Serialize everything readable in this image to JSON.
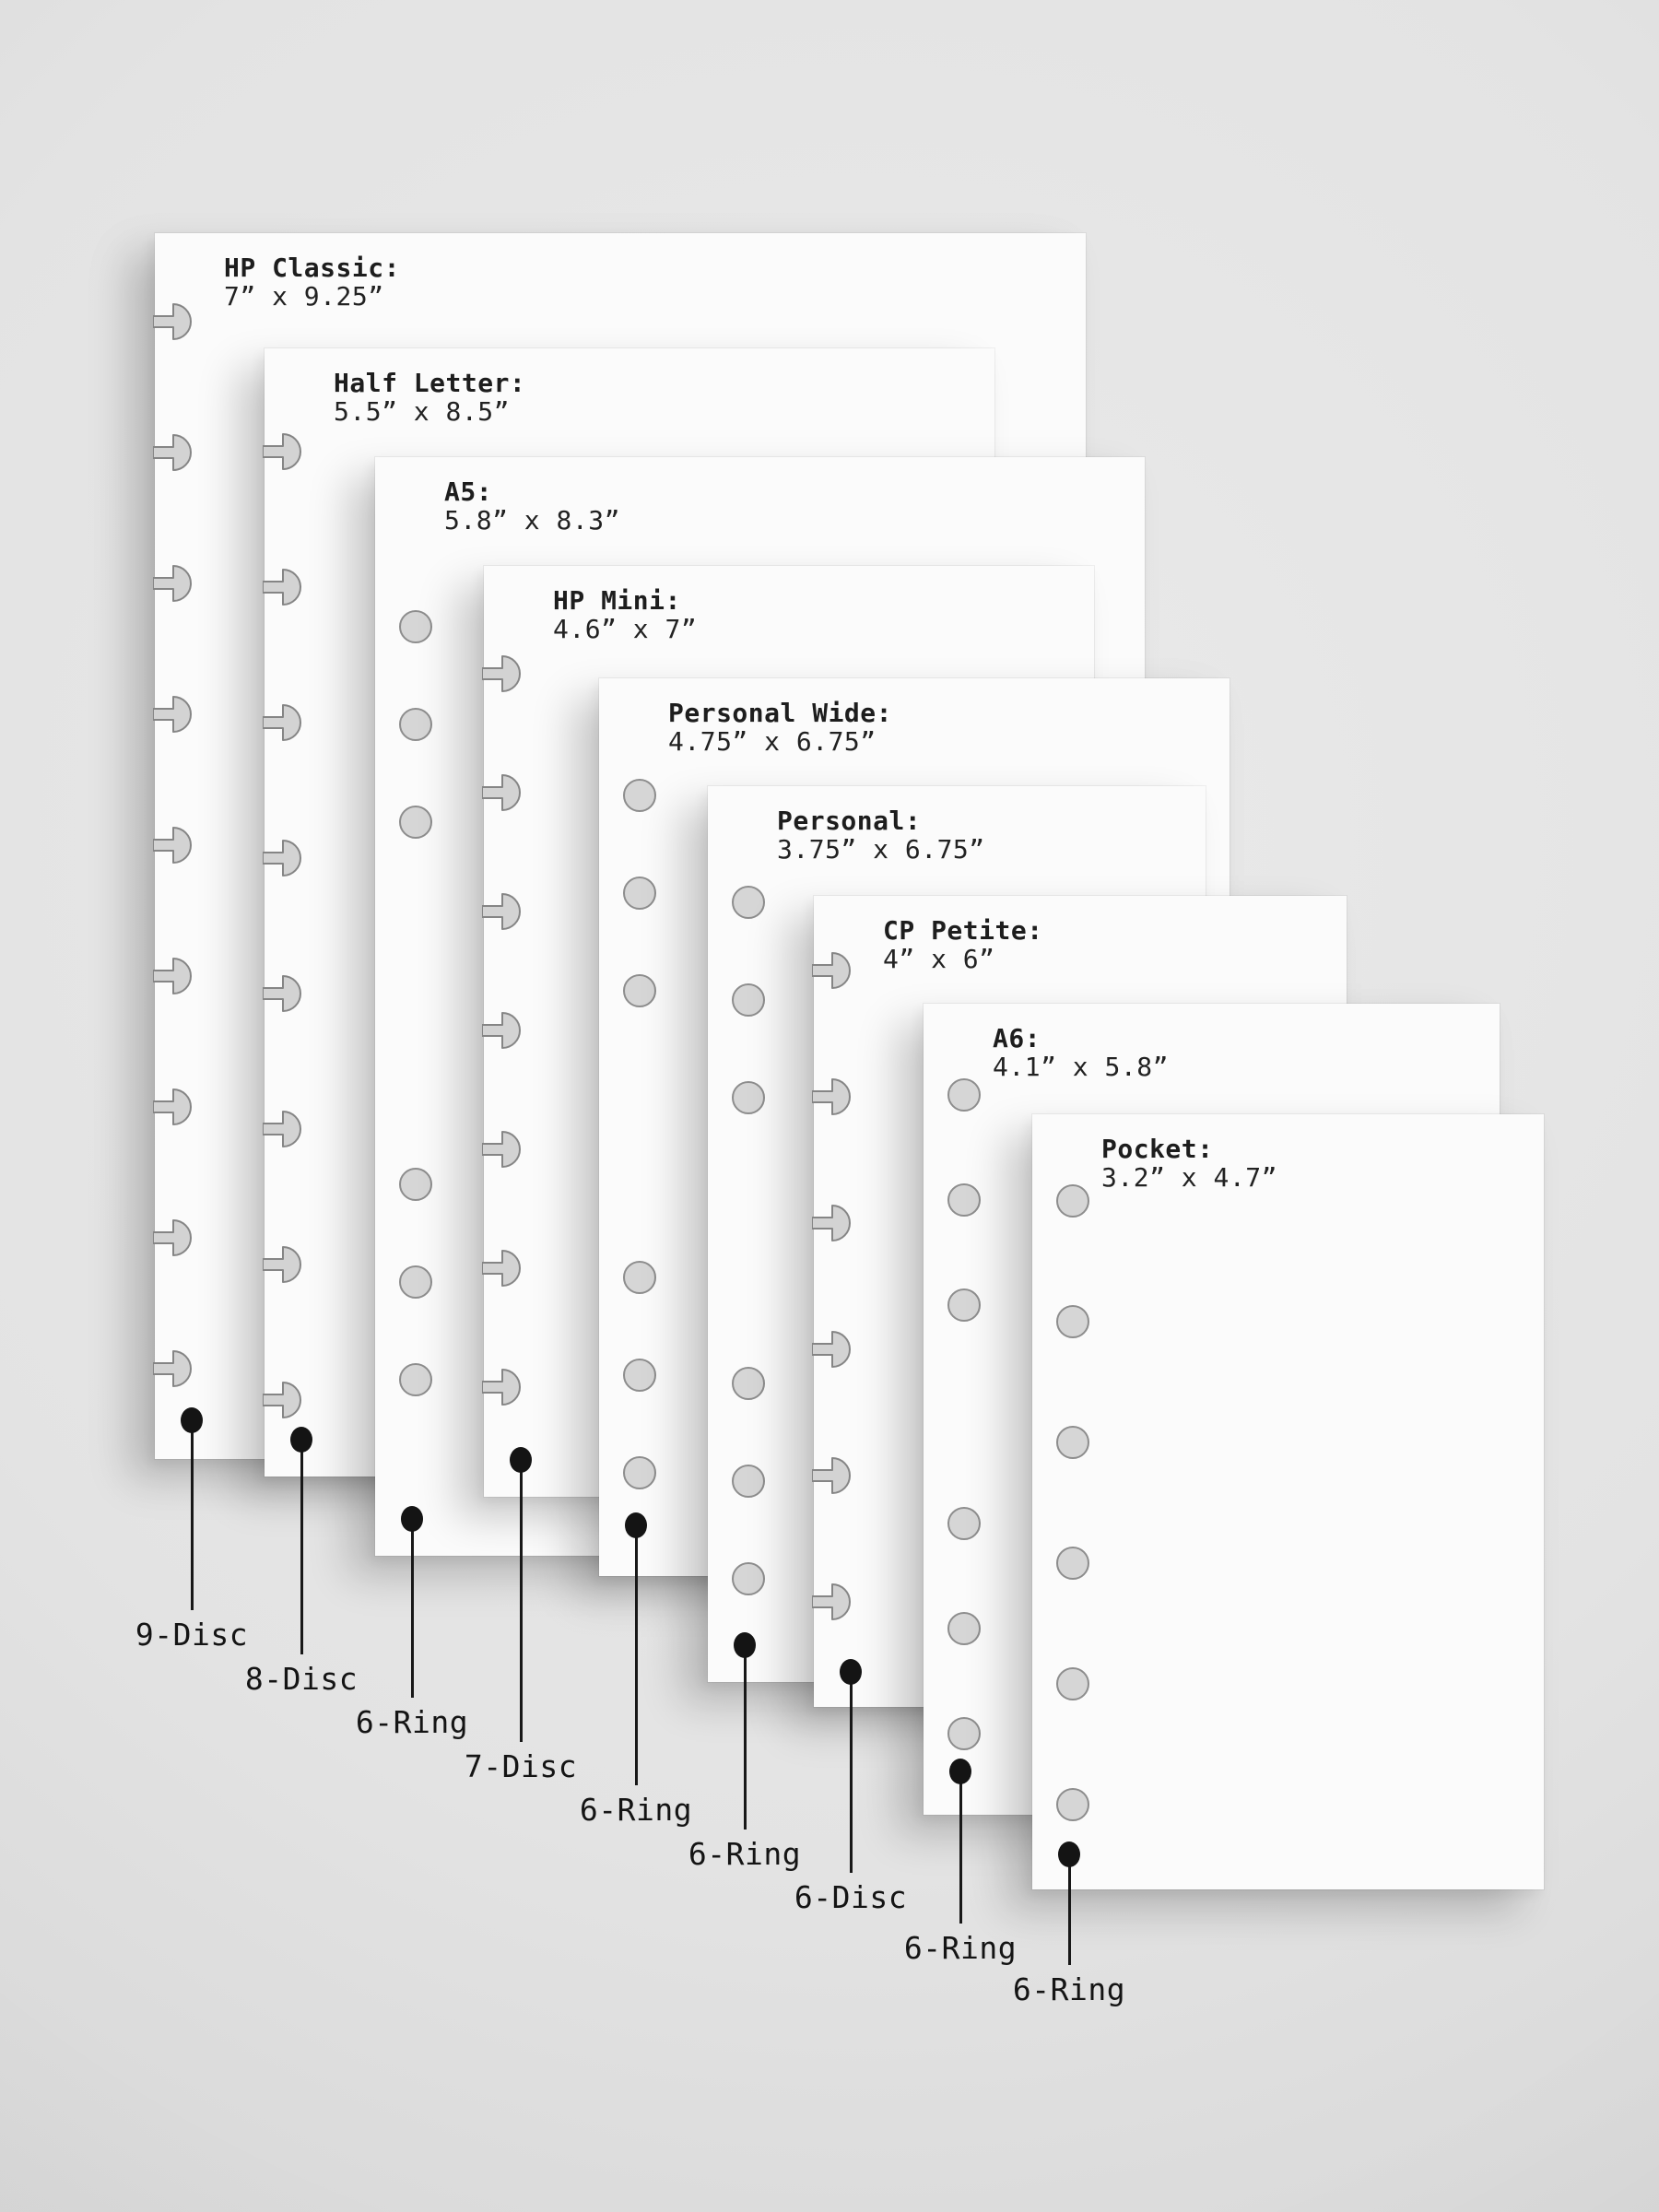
{
  "diagram": {
    "description": "Planner paper size comparison",
    "colors": {
      "background": "#e3e3e3",
      "sheet": "#fbfbfb",
      "hole_fill": "#d6d6d6",
      "hole_stroke": "#8d8d8d",
      "text": "#1d1d1d",
      "leader": "#141414"
    }
  },
  "sheets": [
    {
      "id": "hp-classic",
      "name": "HP Classic:",
      "size": "7” x 9.25”",
      "binding_label": "9-Disc",
      "holes": {
        "type": "disc",
        "count": 9,
        "layout": "even"
      }
    },
    {
      "id": "half-letter",
      "name": "Half Letter:",
      "size": "5.5” x 8.5”",
      "binding_label": "8-Disc",
      "holes": {
        "type": "disc",
        "count": 8,
        "layout": "even"
      }
    },
    {
      "id": "a5",
      "name": "A5:",
      "size": "5.8” x 8.3”",
      "binding_label": "6-Ring",
      "holes": {
        "type": "ring",
        "count": 6,
        "layout": "grouped-3-3"
      }
    },
    {
      "id": "hp-mini",
      "name": "HP Mini:",
      "size": "4.6” x 7”",
      "binding_label": "7-Disc",
      "holes": {
        "type": "disc",
        "count": 7,
        "layout": "even"
      }
    },
    {
      "id": "personal-wide",
      "name": "Personal Wide:",
      "size": "4.75” x 6.75”",
      "binding_label": "6-Ring",
      "holes": {
        "type": "ring",
        "count": 6,
        "layout": "grouped-3-3"
      }
    },
    {
      "id": "personal",
      "name": "Personal:",
      "size": "3.75” x 6.75”",
      "binding_label": "6-Ring",
      "holes": {
        "type": "ring",
        "count": 6,
        "layout": "grouped-3-3"
      }
    },
    {
      "id": "cp-petite",
      "name": "CP Petite:",
      "size": "4” x 6”",
      "binding_label": "6-Disc",
      "holes": {
        "type": "disc",
        "count": 6,
        "layout": "even"
      }
    },
    {
      "id": "a6",
      "name": "A6:",
      "size": "4.1” x 5.8”",
      "binding_label": "6-Ring",
      "holes": {
        "type": "ring",
        "count": 6,
        "layout": "grouped-3-3"
      }
    },
    {
      "id": "pocket",
      "name": "Pocket:",
      "size": "3.2” x 4.7”",
      "binding_label": "6-Ring",
      "holes": {
        "type": "ring",
        "count": 6,
        "layout": "grouped-3-3"
      }
    }
  ]
}
